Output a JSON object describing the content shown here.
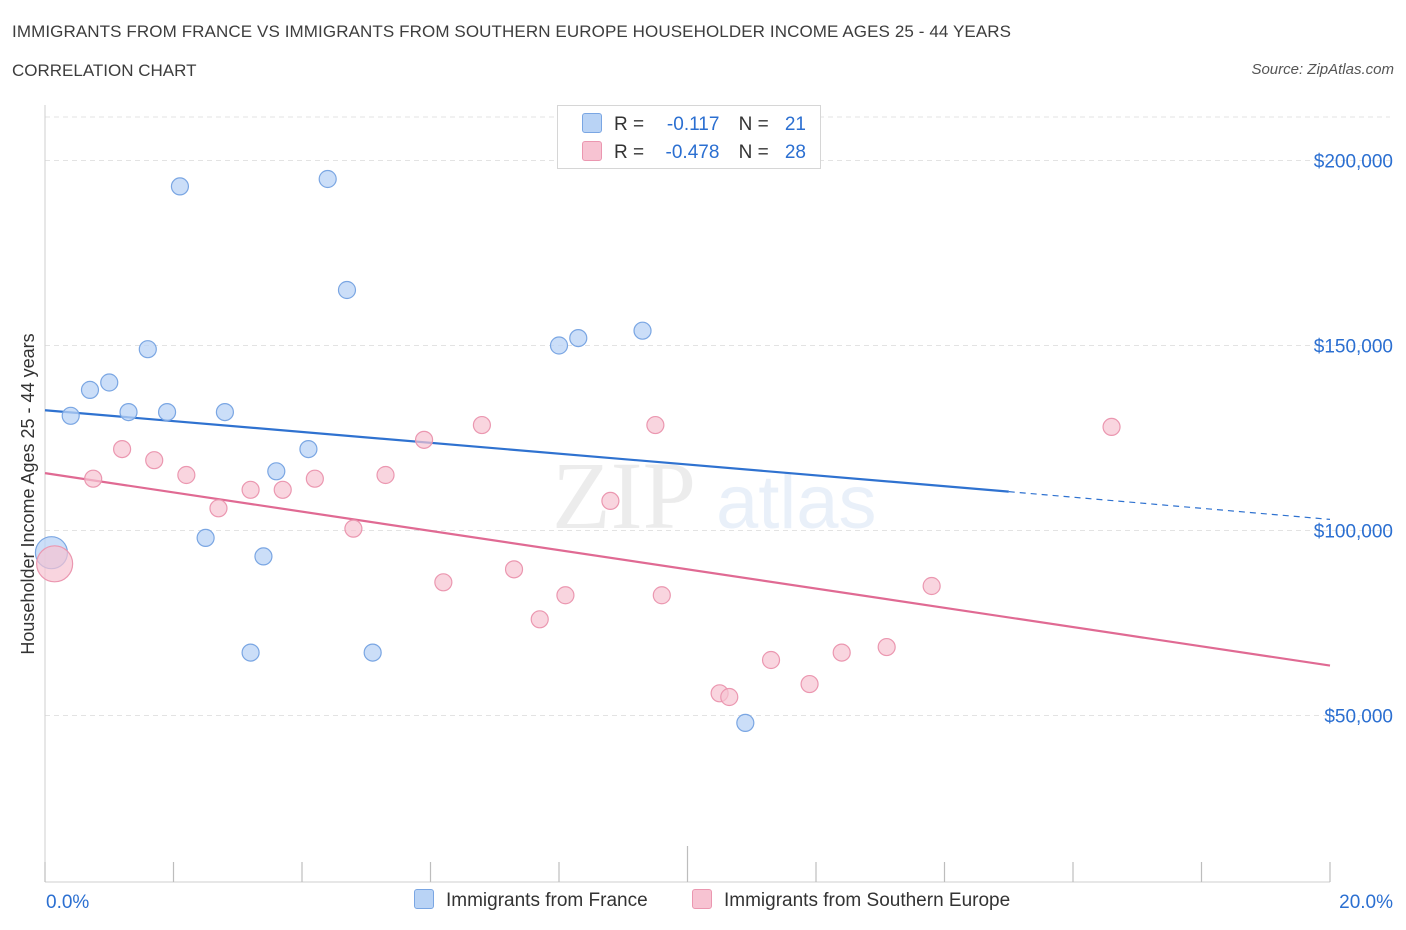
{
  "header": {
    "title": "IMMIGRANTS FROM FRANCE VS IMMIGRANTS FROM SOUTHERN EUROPE HOUSEHOLDER INCOME AGES 25 - 44 YEARS",
    "subtitle": "CORRELATION CHART",
    "source": "Source: ZipAtlas.com"
  },
  "legend_top": {
    "rows": [
      {
        "r_label": "R =",
        "r_value": "-0.117",
        "n_label": "N =",
        "n_value": "21"
      },
      {
        "r_label": "R =",
        "r_value": "-0.478",
        "n_label": "N =",
        "n_value": "28"
      }
    ]
  },
  "watermark": {
    "zip": "ZIP",
    "atlas": "atlas"
  },
  "colors": {
    "france_fill": "#b9d3f5",
    "france_stroke": "#7aa6e3",
    "france_line": "#2f72d0",
    "southern_fill": "#f7c3d2",
    "southern_stroke": "#eb97b0",
    "southern_line": "#e06a93",
    "tick_label": "#2b6fd1",
    "grid": "#e3e3e3"
  },
  "chart_data": {
    "type": "scatter",
    "xlabel": "",
    "ylabel": "Householder Income Ages 25 - 44 years",
    "xlim": [
      0,
      20
    ],
    "ylim": [
      5000,
      215000
    ],
    "x_tick_labels": [
      "0.0%",
      "20.0%"
    ],
    "y_ticks": [
      50000,
      100000,
      150000,
      200000
    ],
    "y_tick_labels": [
      "$50,000",
      "$100,000",
      "$150,000",
      "$200,000"
    ],
    "grid": "horizontal dashed",
    "legend": "bottom-center",
    "series": [
      {
        "name": "Immigrants from France",
        "points": [
          [
            0.1,
            94000
          ],
          [
            0.4,
            131000
          ],
          [
            0.7,
            138000
          ],
          [
            1.0,
            140000
          ],
          [
            1.3,
            132000
          ],
          [
            1.6,
            149000
          ],
          [
            1.9,
            132000
          ],
          [
            2.1,
            193000
          ],
          [
            2.5,
            98000
          ],
          [
            2.8,
            132000
          ],
          [
            3.2,
            67000
          ],
          [
            3.4,
            93000
          ],
          [
            3.6,
            116000
          ],
          [
            4.1,
            122000
          ],
          [
            4.4,
            195000
          ],
          [
            4.7,
            165000
          ],
          [
            5.1,
            67000
          ],
          [
            8.0,
            150000
          ],
          [
            8.3,
            152000
          ],
          [
            9.3,
            154000
          ],
          [
            10.9,
            48000
          ]
        ],
        "trend": {
          "x0": 0,
          "y0": 132500,
          "x1": 15.0,
          "y1": 110500,
          "dashed_to_x": 20.0,
          "dashed_to_y": 103000
        }
      },
      {
        "name": "Immigrants from Southern Europe",
        "points": [
          [
            0.15,
            91000
          ],
          [
            0.75,
            114000
          ],
          [
            1.2,
            122000
          ],
          [
            1.7,
            119000
          ],
          [
            2.2,
            115000
          ],
          [
            2.7,
            106000
          ],
          [
            3.2,
            111000
          ],
          [
            3.7,
            111000
          ],
          [
            4.2,
            114000
          ],
          [
            4.8,
            100500
          ],
          [
            5.3,
            115000
          ],
          [
            5.9,
            124500
          ],
          [
            6.2,
            86000
          ],
          [
            6.8,
            128500
          ],
          [
            7.3,
            89500
          ],
          [
            7.7,
            76000
          ],
          [
            8.1,
            82500
          ],
          [
            8.8,
            108000
          ],
          [
            9.5,
            128500
          ],
          [
            9.6,
            82500
          ],
          [
            10.5,
            56000
          ],
          [
            10.65,
            55000
          ],
          [
            11.3,
            65000
          ],
          [
            11.9,
            58500
          ],
          [
            12.4,
            67000
          ],
          [
            13.1,
            68500
          ],
          [
            13.8,
            85000
          ],
          [
            16.6,
            128000
          ]
        ],
        "trend": {
          "x0": 0,
          "y0": 115500,
          "x1": 20.0,
          "y1": 63500
        }
      }
    ]
  }
}
